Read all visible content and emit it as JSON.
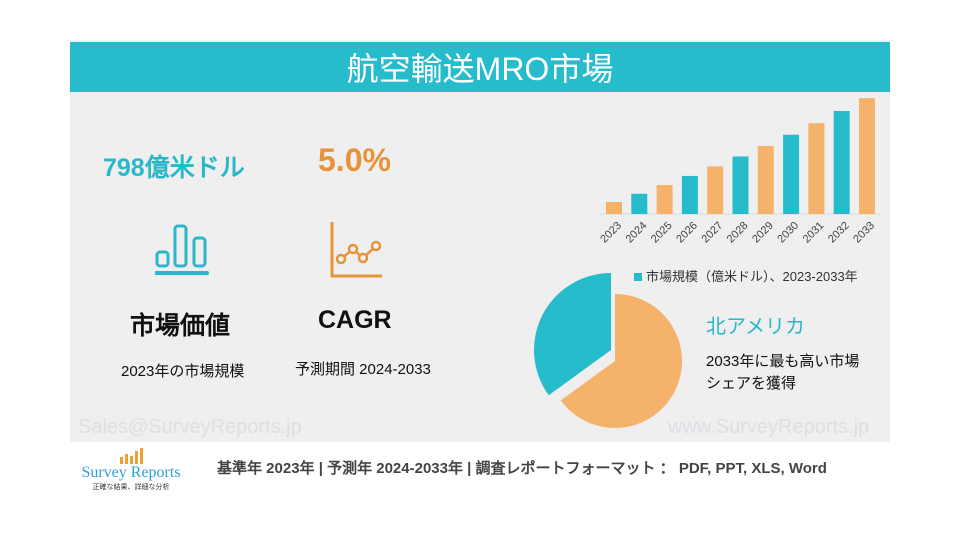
{
  "header": {
    "title": "航空輸送MRO市場"
  },
  "stats": {
    "market_value": "798億米ドル",
    "market_label": "市場価値",
    "market_sub": "2023年の市場規模",
    "cagr_value": "5.0%",
    "cagr_label": "CAGR",
    "cagr_sub": "予測期間 2024-2033"
  },
  "region": {
    "name": "北アメリカ",
    "desc_line1": "2033年に最も高い市場",
    "desc_line2": "シェアを獲得"
  },
  "watermarks": {
    "email": "Sales@SurveyReports.jp",
    "site": "www.SurveyReports.jp"
  },
  "footer": {
    "text": "基準年 2023年 | 予測年 2024-2033年 | 調査レポートフォーマット ： PDF, PPT, XLS, Word"
  },
  "logo": {
    "name": "Survey Reports",
    "tagline": "正確な結果、詳細な分析"
  },
  "colors": {
    "teal": "#26bccc",
    "orange": "#f5b26b",
    "accent_orange": "#e8923a"
  },
  "icons": {
    "market": "bar-chart-icon",
    "cagr": "line-chart-icon"
  },
  "chart_data": [
    {
      "type": "bar",
      "categories": [
        "2023",
        "2024",
        "2025",
        "2026",
        "2027",
        "2028",
        "2029",
        "2030",
        "2031",
        "2032",
        "2033"
      ],
      "values": [
        798,
        838,
        880,
        924,
        970,
        1018,
        1069,
        1123,
        1179,
        1238,
        1300
      ],
      "legend": "市場規模（億米ドル）、2023-2033年",
      "legend_placement": "bottom",
      "ylim": [
        740,
        1320
      ],
      "grid": false
    },
    {
      "type": "pie",
      "slices": [
        {
          "label": "北アメリカ",
          "value": 35,
          "color": "#26bccc"
        },
        {
          "value": 65,
          "color": "#f5b26b"
        }
      ]
    }
  ]
}
